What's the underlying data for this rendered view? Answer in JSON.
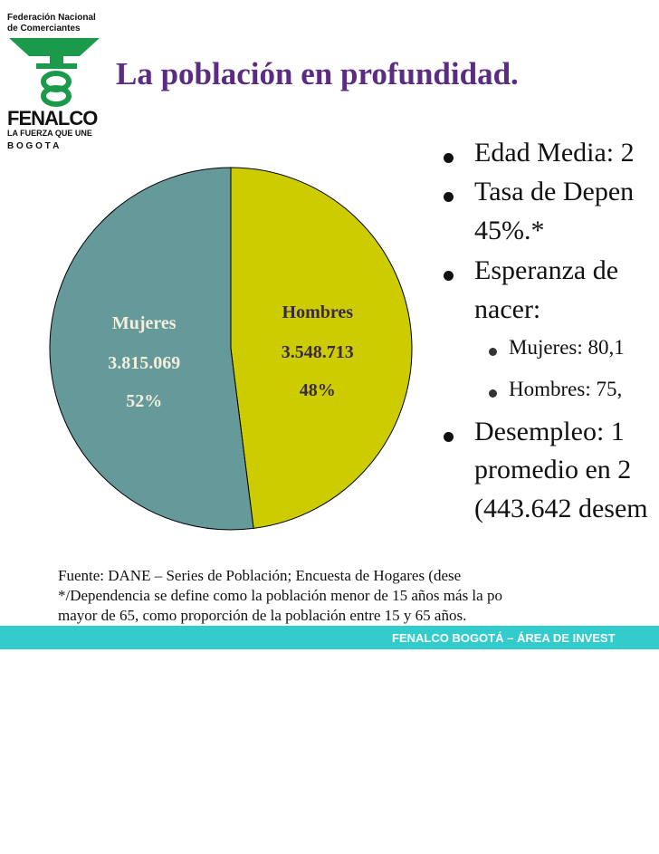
{
  "logo": {
    "line1": "Federación Nacional",
    "line2": "de  Comerciantes",
    "name": "FENALCO",
    "tagline": "LA FUERZA QUE UNE",
    "city": "B  O  G  O  T  A"
  },
  "title": "La población en profundidad.",
  "chart_data": {
    "type": "pie",
    "categories": [
      "Hombres",
      "Mujeres"
    ],
    "values": [
      48,
      52
    ],
    "value_labels": [
      "48%",
      "52%"
    ],
    "counts": [
      3548713,
      3815069
    ],
    "count_labels": [
      "3.548.713",
      "3.815.069"
    ],
    "colors": [
      "#cccc00",
      "#669999"
    ]
  },
  "bullets": [
    "Edad Media: 2",
    "Tasa de Depen",
    "45%.*",
    "Esperanza de",
    "nacer:",
    "Mujeres: 80,1",
    "Hombres: 75,",
    "Desempleo: 1",
    "promedio en 2",
    "(443.642 desem"
  ],
  "footnotes": [
    "Fuente: DANE – Series de Población; Encuesta de Hogares (dese",
    "*/Dependencia se define como la población menor de 15 años más la po",
    "mayor de 65, como proporción de la población entre 15 y 65 años."
  ],
  "footer": "FENALCO BOGOTÁ – ÁREA DE INVEST"
}
